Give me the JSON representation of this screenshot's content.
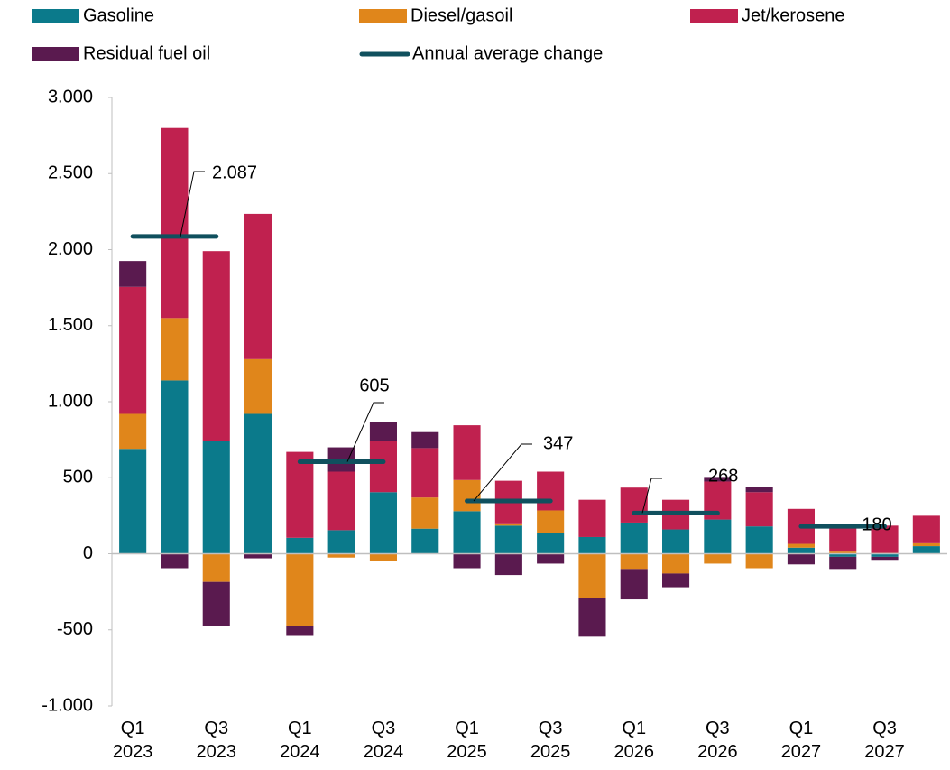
{
  "chart_data": {
    "type": "bar",
    "stacked": true,
    "categories": [
      "Q1 2023",
      null,
      "Q3 2023",
      null,
      "Q1 2024",
      null,
      "Q3 2024",
      null,
      "Q1 2025",
      null,
      "Q3 2025",
      null,
      "Q1 2026",
      null,
      "Q3 2026",
      null,
      "Q1 2027",
      null,
      "Q3 2027",
      null
    ],
    "series": [
      {
        "name": "Gasoline",
        "color": "#0b7a8b",
        "values": [
          690,
          1140,
          740,
          920,
          105,
          155,
          405,
          165,
          280,
          185,
          135,
          110,
          205,
          160,
          225,
          180,
          40,
          -20,
          -20,
          50
        ]
      },
      {
        "name": "Diesel/gasoil",
        "color": "#e0861b",
        "values": [
          230,
          410,
          -185,
          360,
          -475,
          -25,
          -50,
          205,
          205,
          15,
          150,
          -290,
          -100,
          -130,
          -65,
          -95,
          25,
          20,
          5,
          25
        ]
      },
      {
        "name": "Jet/kerosene",
        "color": "#c0214f",
        "values": [
          835,
          1250,
          1250,
          955,
          565,
          385,
          335,
          325,
          360,
          280,
          255,
          245,
          230,
          195,
          250,
          225,
          230,
          175,
          180,
          175
        ]
      },
      {
        "name": "Residual fuel oil",
        "color": "#5a1a4f",
        "values": [
          170,
          -95,
          -290,
          -30,
          -65,
          160,
          125,
          105,
          -95,
          -140,
          -65,
          -255,
          -200,
          -90,
          30,
          35,
          -70,
          -80,
          -20,
          0
        ]
      }
    ],
    "annual_average": {
      "name": "Annual average change",
      "color": "#10505e",
      "values": [
        2087,
        605,
        347,
        268,
        180
      ],
      "value_labels": [
        "2.087",
        "605",
        "347",
        "268",
        "180"
      ]
    },
    "ylim": [
      -1000,
      3000
    ],
    "yticks": [
      {
        "value": -1000,
        "label": "-1.000"
      },
      -500,
      0,
      500,
      {
        "value": 1000,
        "label": "1.000"
      },
      {
        "value": 1500,
        "label": "1.500"
      },
      {
        "value": 2000,
        "label": "2.000"
      },
      {
        "value": 2500,
        "label": "2.500"
      },
      {
        "value": 3000,
        "label": "3.000"
      }
    ],
    "grid": false
  }
}
